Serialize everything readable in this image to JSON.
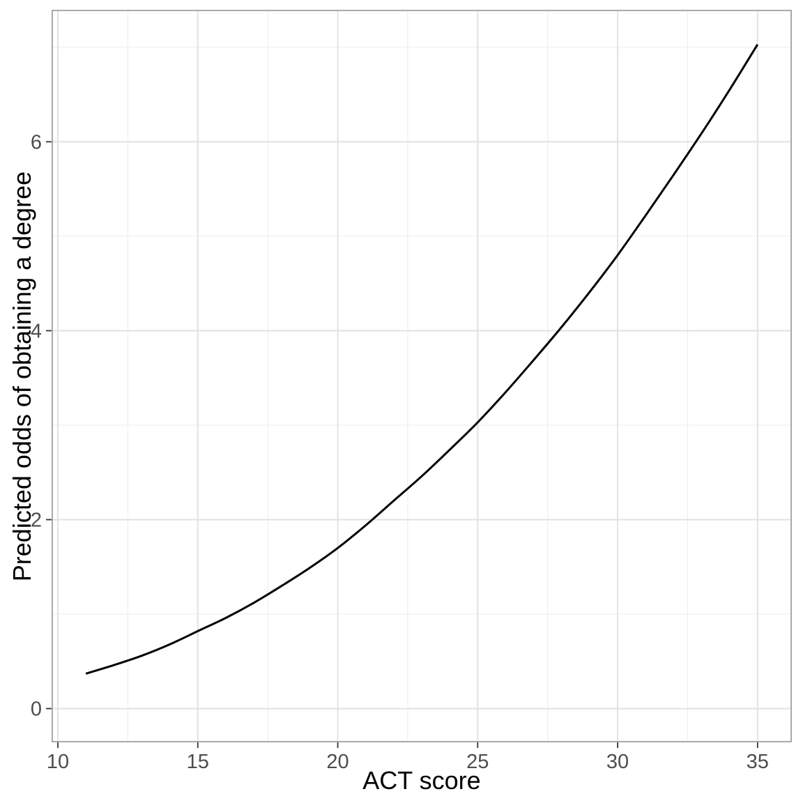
{
  "chart_data": {
    "type": "line",
    "title": "",
    "xlabel": "ACT score",
    "ylabel": "Predicted odds of obtaining a degree",
    "x": [
      11,
      12,
      13,
      14,
      15,
      16,
      17,
      18,
      19,
      20,
      21,
      22,
      23,
      24,
      25,
      26,
      27,
      28,
      29,
      30,
      31,
      32,
      33,
      34,
      35
    ],
    "y": [
      0.37,
      0.46,
      0.56,
      0.68,
      0.82,
      0.96,
      1.12,
      1.3,
      1.49,
      1.7,
      1.94,
      2.2,
      2.46,
      2.74,
      3.03,
      3.35,
      3.69,
      4.04,
      4.41,
      4.8,
      5.22,
      5.65,
      6.09,
      6.55,
      7.03
    ],
    "xlim": [
      9.8,
      36.2
    ],
    "ylim": [
      -0.35,
      7.39
    ],
    "x_major_ticks": [
      10,
      15,
      20,
      25,
      30,
      35
    ],
    "x_minor_ticks": [
      12.5,
      17.5,
      22.5,
      27.5,
      32.5
    ],
    "y_major_ticks": [
      0,
      2,
      4,
      6
    ],
    "y_minor_ticks": [
      1,
      3,
      5,
      7
    ],
    "grid": "major+minor",
    "legend": "none",
    "style": {
      "line_color": "#000000",
      "line_width": 3,
      "grid_major_color": "#e2e2e2",
      "grid_minor_color": "#efefef",
      "panel_border_color": "#a9a9a9",
      "tick_mark_color": "#333333",
      "tick_label_color": "#4d4d4d",
      "axis_title_color": "#000000",
      "background": "#ffffff"
    }
  }
}
